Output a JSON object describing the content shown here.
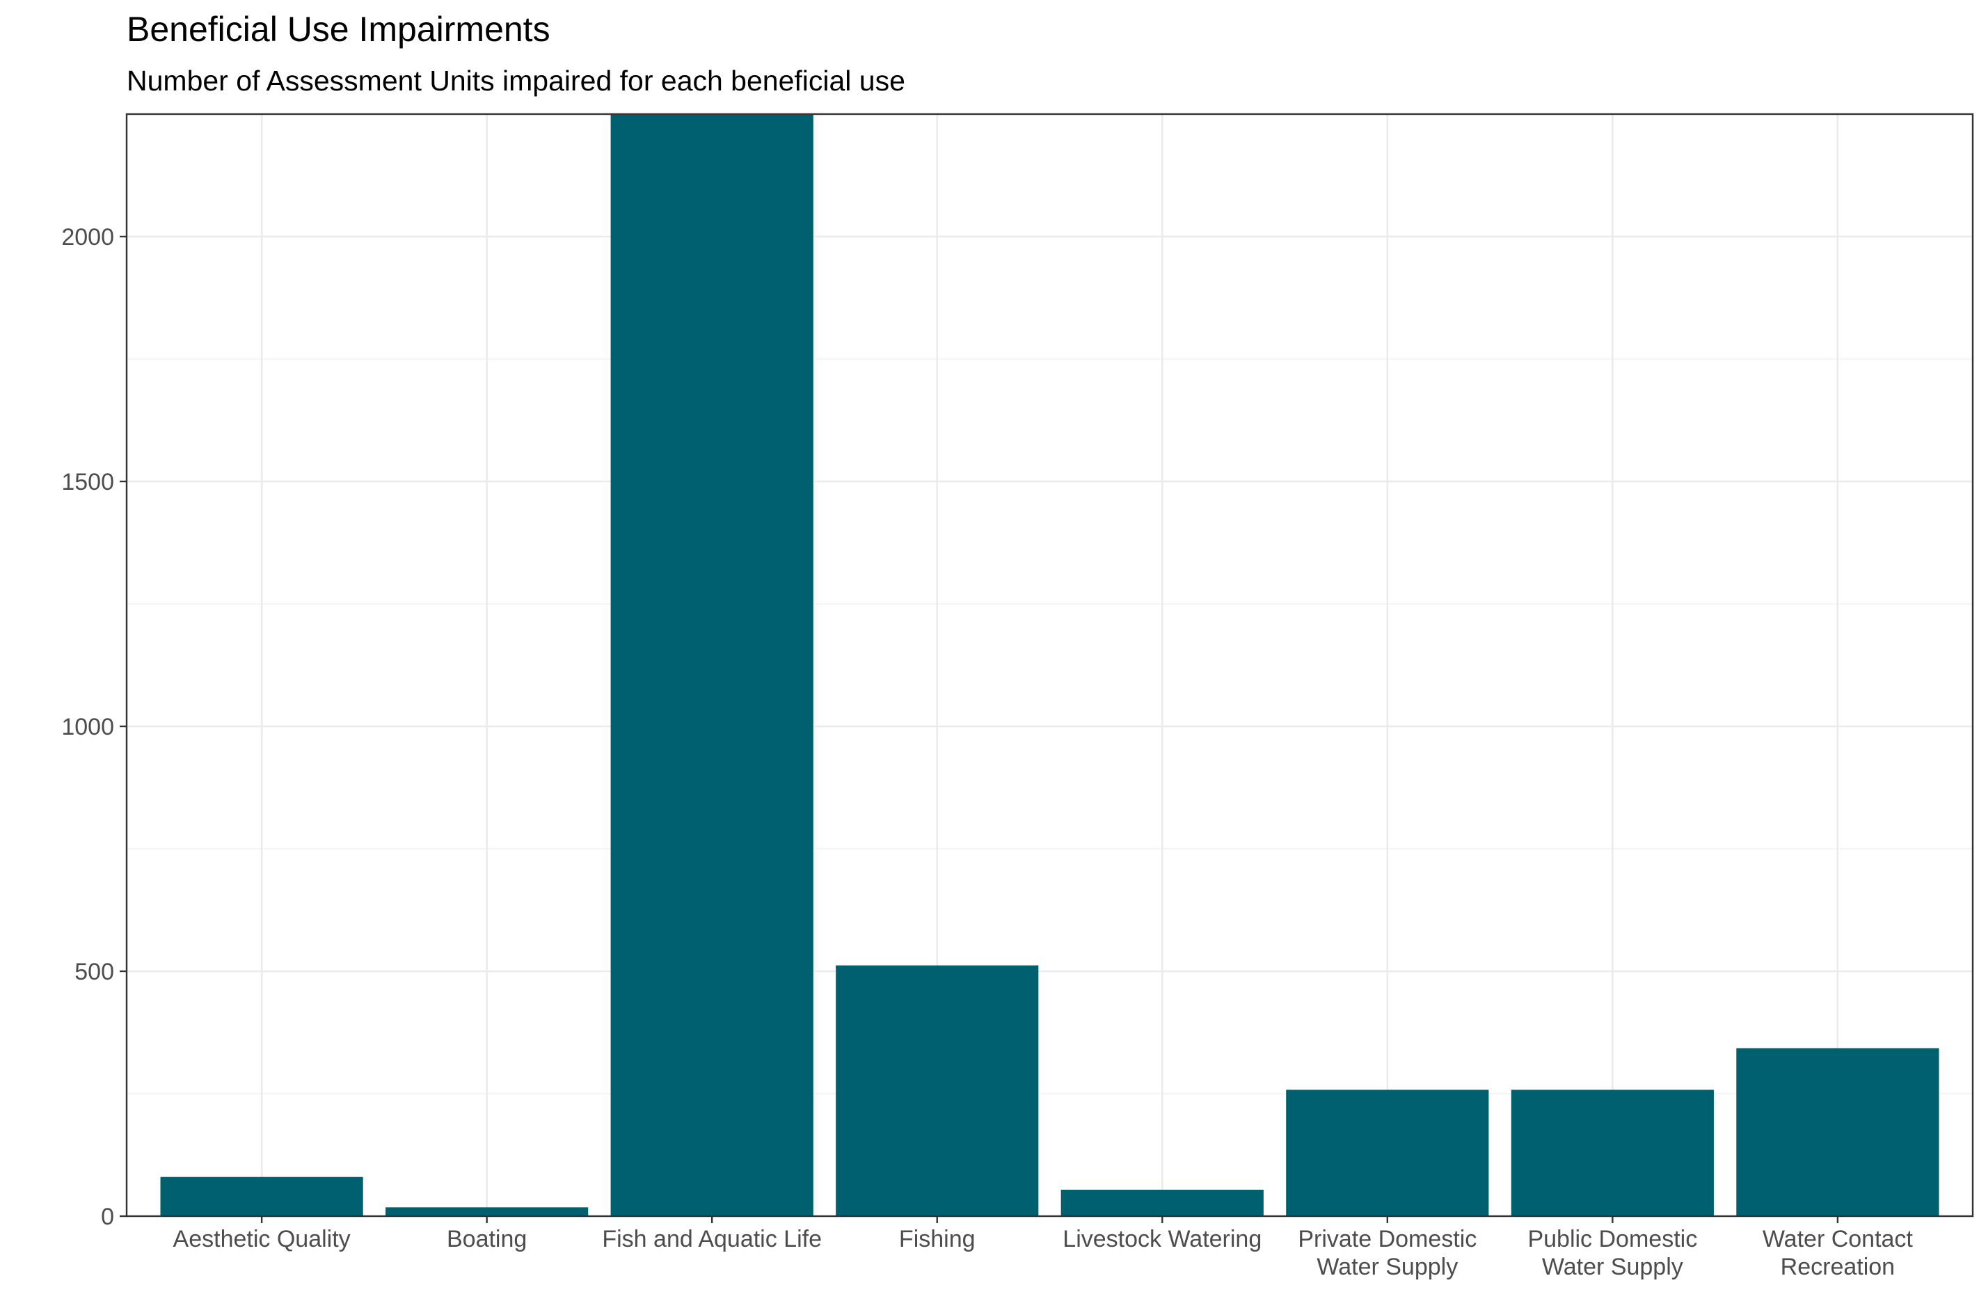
{
  "chart_data": {
    "type": "bar",
    "title": "Beneficial Use Impairments",
    "subtitle": "Number of Assessment Units impaired for each beneficial use",
    "xlabel": "",
    "ylabel": "",
    "categories": [
      [
        "Aesthetic Quality"
      ],
      [
        "Boating"
      ],
      [
        "Fish and Aquatic Life"
      ],
      [
        "Fishing"
      ],
      [
        "Livestock Watering"
      ],
      [
        "Private Domestic",
        "Water Supply"
      ],
      [
        "Public Domestic",
        "Water Supply"
      ],
      [
        "Water Contact",
        "Recreation"
      ]
    ],
    "values": [
      80,
      18,
      2255,
      512,
      54,
      258,
      258,
      343
    ],
    "ylim": [
      0,
      2250
    ],
    "y_ticks": [
      0,
      500,
      1000,
      1500,
      2000
    ],
    "y_tick_labels": [
      "0",
      "500",
      "1000",
      "1500",
      "2000"
    ],
    "y_minor_ticks": [
      250,
      750,
      1250,
      1750,
      2250
    ],
    "grid": true,
    "legend": "none",
    "bar_color": "#006070"
  }
}
